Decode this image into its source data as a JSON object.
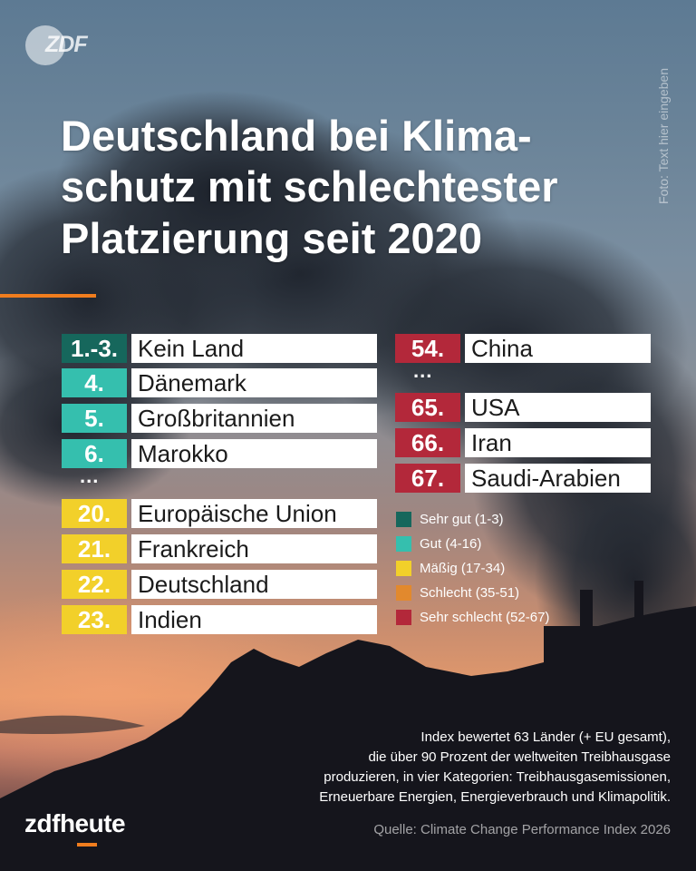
{
  "branding": {
    "logo_text": "ZDF",
    "footer_logo_prefix": "zdf",
    "footer_logo_suffix": "heute",
    "accent_color": "#f07d1e"
  },
  "photo_credit": "Foto: Text hier eingeben",
  "title_lines": [
    "Deutschland bei Klima-",
    "schutz mit schlechtester",
    "Platzierung seit 2020"
  ],
  "ranking_left": [
    {
      "rank": "1.-3.",
      "name": "Kein Land",
      "category": "sehr-gut"
    },
    {
      "rank": "4.",
      "name": "Dänemark",
      "category": "gut"
    },
    {
      "rank": "5.",
      "name": "Großbritannien",
      "category": "gut"
    },
    {
      "rank": "6.",
      "name": "Marokko",
      "category": "gut"
    },
    {
      "rank": "20.",
      "name": "Europäische Union",
      "category": "maessig"
    },
    {
      "rank": "21.",
      "name": "Frankreich",
      "category": "maessig"
    },
    {
      "rank": "22.",
      "name": "Deutschland",
      "category": "maessig"
    },
    {
      "rank": "23.",
      "name": "Indien",
      "category": "maessig"
    }
  ],
  "ranking_right": [
    {
      "rank": "54.",
      "name": "China",
      "category": "sehr-schlecht"
    },
    {
      "rank": "65.",
      "name": "USA",
      "category": "sehr-schlecht"
    },
    {
      "rank": "66.",
      "name": "Iran",
      "category": "sehr-schlecht"
    },
    {
      "rank": "67.",
      "name": "Saudi-Arabien",
      "category": "sehr-schlecht"
    }
  ],
  "ellipsis": "...",
  "legend": [
    {
      "label": "Sehr gut (1-3)",
      "color": "#16675c"
    },
    {
      "label": "Gut (4-16)",
      "color": "#35bfae"
    },
    {
      "label": "Mäßig (17-34)",
      "color": "#f2d02a"
    },
    {
      "label": "Schlecht (35-51)",
      "color": "#e2892d"
    },
    {
      "label": "Sehr schlecht (52-67)",
      "color": "#b3283a"
    }
  ],
  "note_lines": [
    "Index bewertet 63 Länder (+ EU gesamt),",
    "die über 90 Prozent der weltweiten Treibhausgase",
    "produzieren, in vier Kategorien: Treibhausgasemissionen,",
    "Erneuerbare Energien, Energieverbrauch und Klimapolitik."
  ],
  "source": "Quelle: Climate Change Performance Index 2026"
}
